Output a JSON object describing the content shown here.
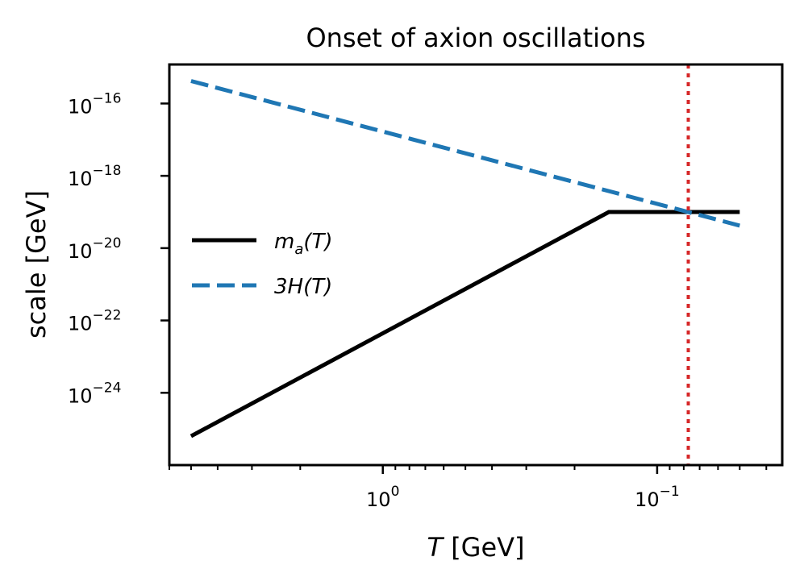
{
  "chart_data": {
    "type": "line",
    "title": "Onset of axion oscillations",
    "xlabel": {
      "italic": "T",
      "rest": " [GeV]"
    },
    "ylabel": "scale [GeV]",
    "x_scale": "log",
    "x_inverted": true,
    "y_scale": "log",
    "xlim": [
      6.0,
      0.035
    ],
    "ylim": [
      1e-26,
      1.2e-15
    ],
    "x_major_ticks": [
      {
        "value": 1.0,
        "base": "10",
        "exp": "0"
      },
      {
        "value": 0.1,
        "base": "10",
        "exp": "−1"
      }
    ],
    "y_major_ticks": [
      {
        "value": 1e-16,
        "base": "10",
        "exp": "−16"
      },
      {
        "value": 1e-18,
        "base": "10",
        "exp": "−18"
      },
      {
        "value": 1e-20,
        "base": "10",
        "exp": "−20"
      },
      {
        "value": 1e-22,
        "base": "10",
        "exp": "−22"
      },
      {
        "value": 1e-24,
        "base": "10",
        "exp": "−24"
      }
    ],
    "series": [
      {
        "name": "m_a(T)",
        "legend_main": "m",
        "legend_sub": "a",
        "legend_tail": "(T)",
        "color": "#000000",
        "dash": "solid",
        "x": [
          5.0,
          0.15,
          0.05
        ],
        "y": [
          6.3e-26,
          1e-19,
          1e-19
        ]
      },
      {
        "name": "3H(T)",
        "legend_main": "3H",
        "legend_sub": "",
        "legend_tail": "(T)",
        "color": "#1f77b4",
        "dash": "dashed",
        "x": [
          5.0,
          0.05
        ],
        "y": [
          4.2e-16,
          4.2e-20
        ]
      }
    ],
    "annotations": [
      {
        "type": "vline",
        "x": 0.077,
        "color": "#d62728",
        "style": "dotted"
      }
    ],
    "grid": false,
    "legend_position": "center-left"
  }
}
